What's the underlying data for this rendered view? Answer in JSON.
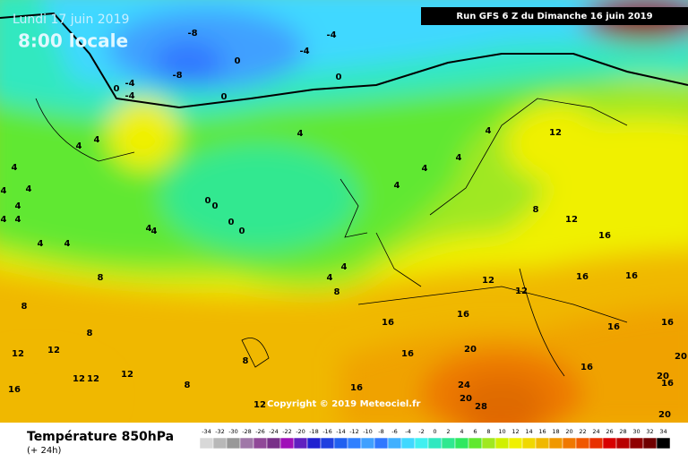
{
  "header": {
    "date": "Lundi 17 juin 2019",
    "time": "8:00 locale",
    "run": "Run GFS 6 Z du Dimanche 16 juin 2019"
  },
  "map": {
    "copyright": "Copyright © 2019 Meteociel.fr",
    "labels": [
      "-8",
      "-4",
      "-4",
      "0",
      "-8",
      "0",
      "-4",
      "0",
      "-4",
      "0",
      "4",
      "4",
      "12",
      "4",
      "4",
      "4",
      "4",
      "4",
      "4",
      "4",
      "4",
      "0",
      "0",
      "0",
      "0",
      "4",
      "4",
      "4",
      "8",
      "12",
      "4",
      "4",
      "4",
      "4",
      "16",
      "8",
      "8",
      "4",
      "4",
      "8",
      "12",
      "12",
      "16",
      "16",
      "16",
      "16",
      "16",
      "16",
      "8",
      "8",
      "12",
      "12",
      "12",
      "12",
      "12",
      "16",
      "8",
      "16",
      "16",
      "20",
      "20",
      "24",
      "28",
      "16",
      "20",
      "20",
      "16",
      "20",
      "12"
    ]
  },
  "legend": {
    "title": "Température 850hPa",
    "subtitle": "(+ 24h)",
    "values": [
      -34,
      -32,
      -30,
      -28,
      -26,
      -24,
      -22,
      -20,
      -18,
      -16,
      -14,
      -12,
      -10,
      -8,
      -6,
      -4,
      -2,
      0,
      2,
      4,
      6,
      8,
      10,
      12,
      14,
      16,
      18,
      20,
      22,
      24,
      26,
      28,
      30,
      32,
      34
    ],
    "colors": [
      "#d8d8d8",
      "#b8b8b8",
      "#989898",
      "#a078a8",
      "#904898",
      "#783088",
      "#a010b8",
      "#6020c0",
      "#2020d0",
      "#2040e0",
      "#2060f0",
      "#3080ff",
      "#40a0ff",
      "#3078ff",
      "#40b0ff",
      "#40d8ff",
      "#40f0f0",
      "#30e8c0",
      "#30e890",
      "#30e860",
      "#60e830",
      "#a0e820",
      "#d0f000",
      "#f0f000",
      "#f0d800",
      "#f0b800",
      "#f09800",
      "#f07800",
      "#f05800",
      "#e83000",
      "#d80000",
      "#b80000",
      "#900000",
      "#700000",
      "#000000"
    ]
  }
}
